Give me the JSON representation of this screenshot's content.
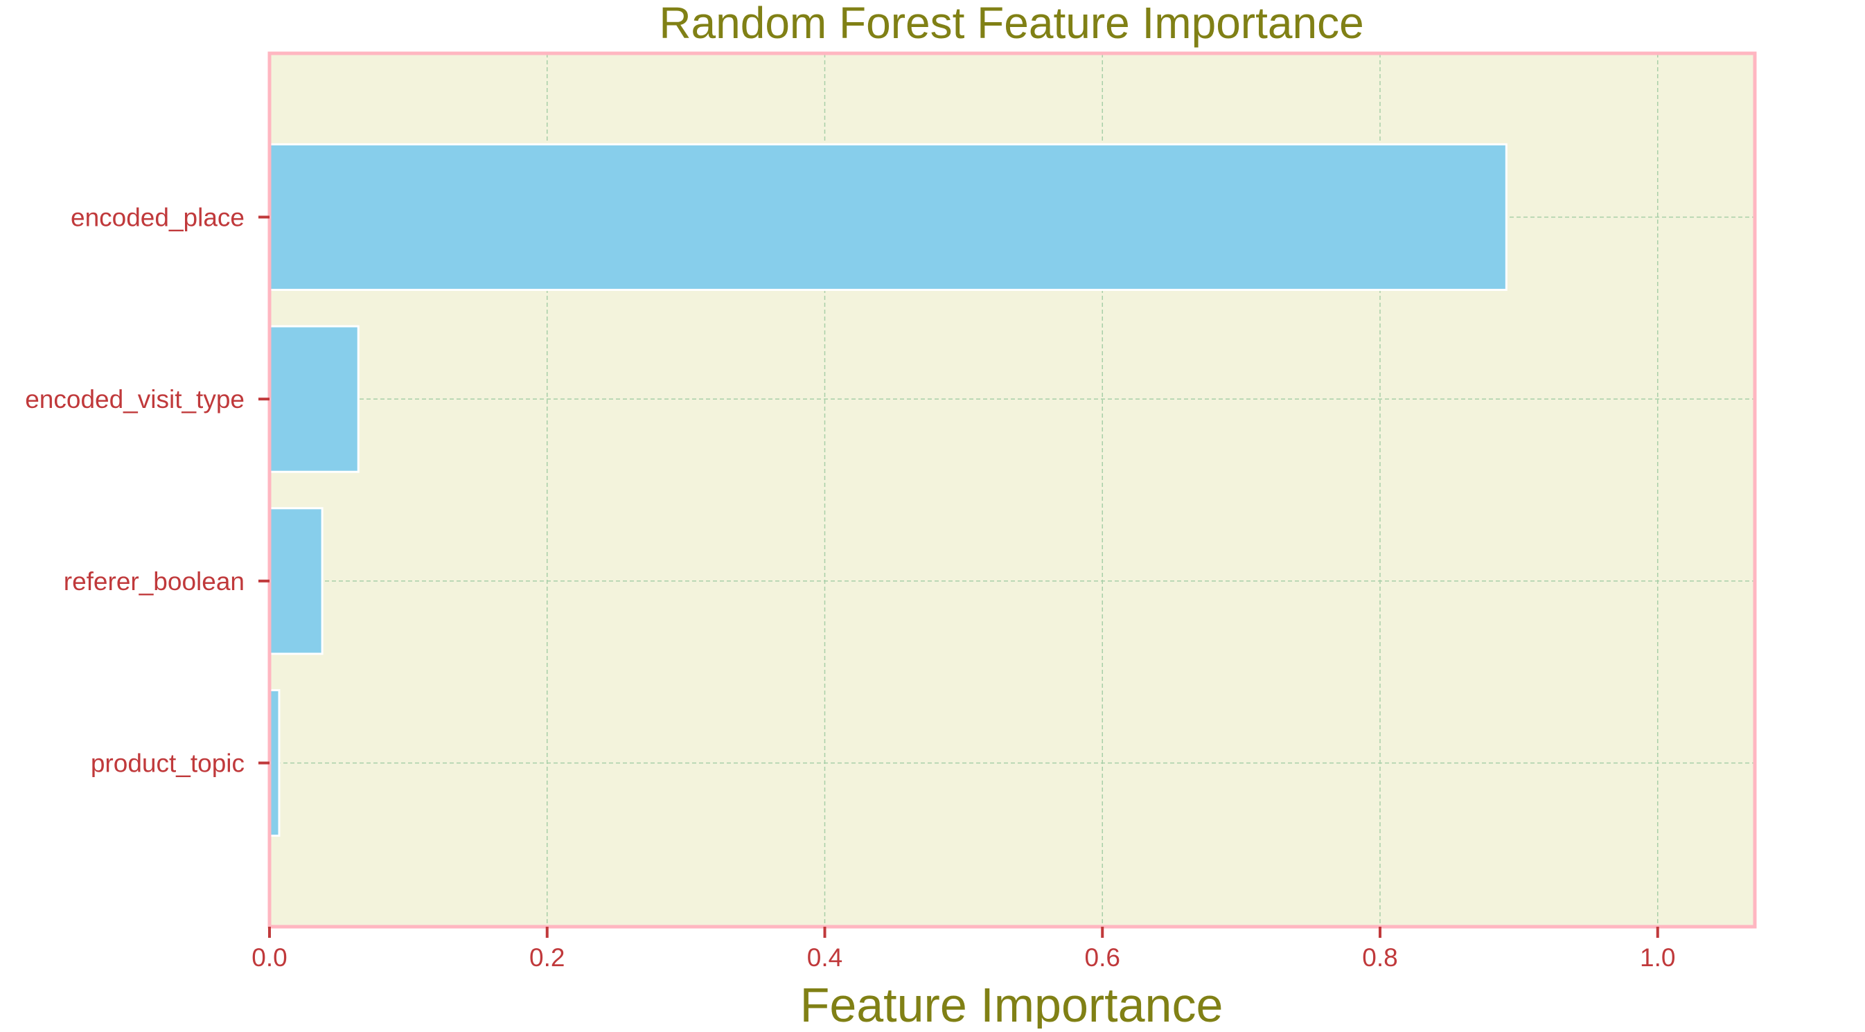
{
  "chart_data": {
    "type": "bar",
    "orientation": "horizontal",
    "title": "Random Forest Feature Importance",
    "xlabel": "Feature Importance",
    "ylabel": "",
    "categories": [
      "encoded_place",
      "encoded_visit_type",
      "referer_boolean",
      "product_topic"
    ],
    "values": [
      0.891,
      0.064,
      0.038,
      0.007
    ],
    "xlim": [
      0,
      1.07
    ],
    "xticks": [
      0.0,
      0.2,
      0.4,
      0.6,
      0.8,
      1.0
    ],
    "xtick_labels": [
      "0.0",
      "0.2",
      "0.4",
      "0.6",
      "0.8",
      "1.0"
    ],
    "grid": true,
    "legend": "none",
    "colors": {
      "bar": "#87ceeb",
      "bar_edge": "#ffffff",
      "plot_background": "#f3f3dc",
      "frame": "#ffb6c1",
      "grid": "#a8cfa8",
      "title": "#808015",
      "xlabel": "#808015",
      "tick_label": "#c0393b",
      "tick_mark": "#c0393b"
    }
  }
}
